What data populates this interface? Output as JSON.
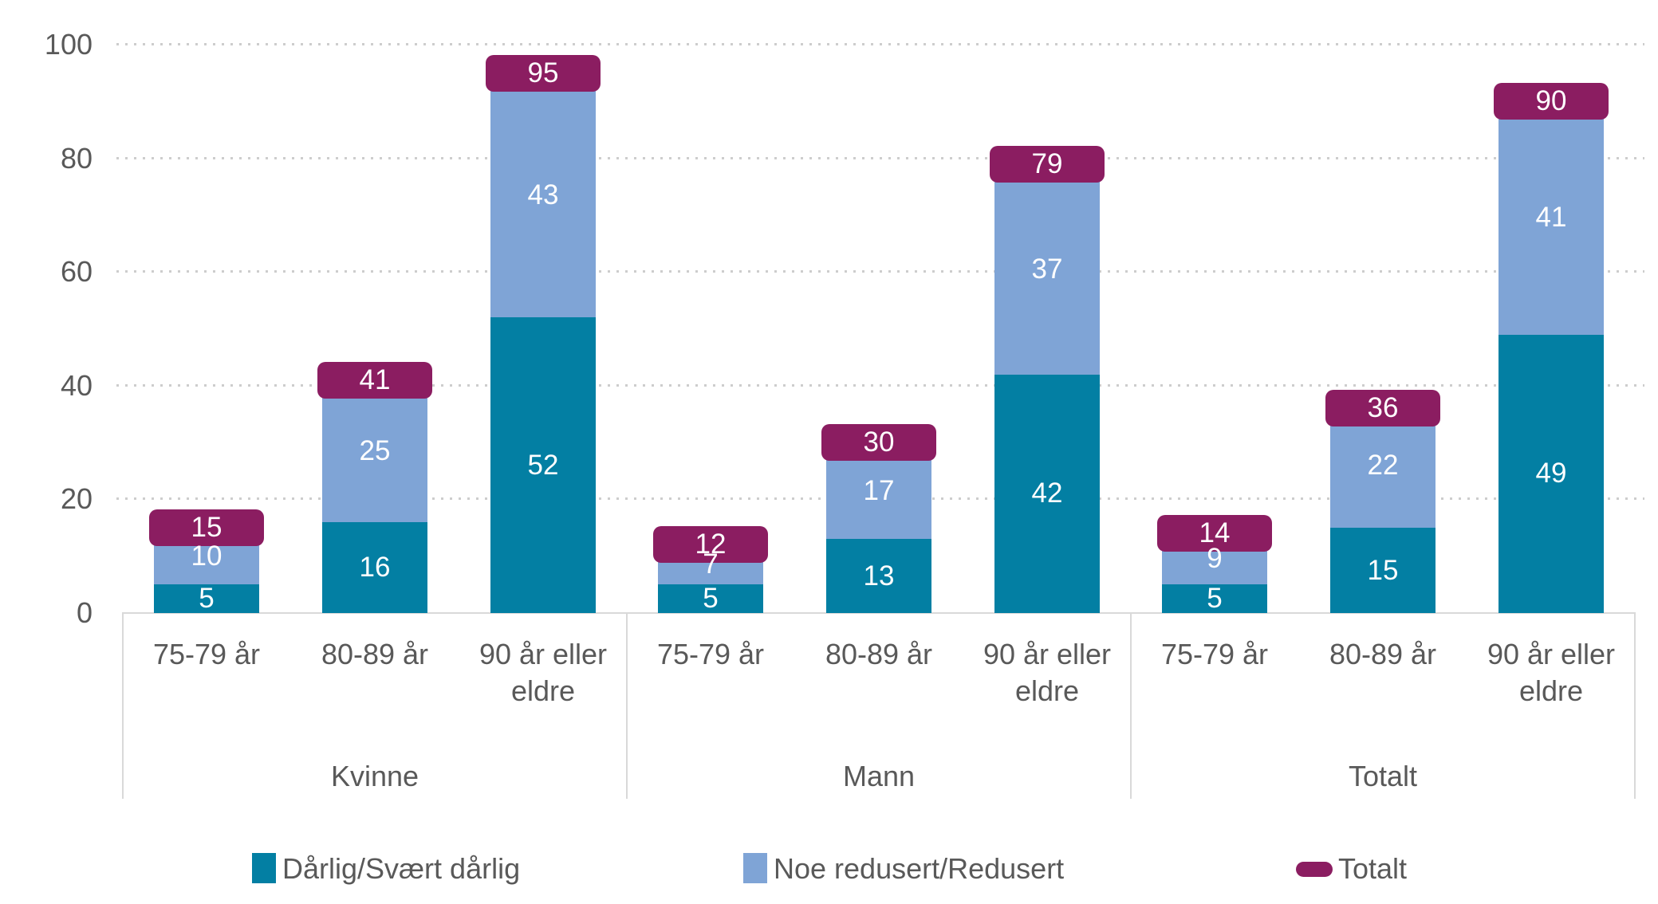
{
  "chart_data": {
    "type": "bar",
    "stacked": true,
    "title": "",
    "ylim": [
      0,
      100
    ],
    "yticks": [
      0,
      20,
      40,
      60,
      80,
      100
    ],
    "grid": "horizontal-dotted",
    "legend_position": "bottom",
    "groups": [
      {
        "label": "Kvinne",
        "categories": [
          "75-79 år",
          "80-89 år",
          "90 år eller eldre"
        ]
      },
      {
        "label": "Mann",
        "categories": [
          "75-79 år",
          "80-89 år",
          "90 år eller eldre"
        ]
      },
      {
        "label": "Totalt",
        "categories": [
          "75-79 år",
          "80-89 år",
          "90 år eller eldre"
        ]
      }
    ],
    "series": [
      {
        "name": "Dårlig/Svært dårlig",
        "color": "#037fa3",
        "marker": "square",
        "values": [
          [
            5,
            16,
            52
          ],
          [
            5,
            13,
            42
          ],
          [
            5,
            15,
            49
          ]
        ]
      },
      {
        "name": "Noe redusert/Redusert",
        "color": "#7fa4d6",
        "marker": "square",
        "values": [
          [
            10,
            25,
            43
          ],
          [
            7,
            17,
            37
          ],
          [
            9,
            22,
            41
          ]
        ]
      },
      {
        "name": "Totalt",
        "color": "#8b1d61",
        "marker": "rounded-pill-cap",
        "values": [
          [
            15,
            41,
            95
          ],
          [
            12,
            30,
            79
          ],
          [
            14,
            36,
            90
          ]
        ]
      }
    ],
    "axis_text_color": "#595959",
    "gridline_color": "#cdcdcd",
    "axis_box_color": "#d9d9d9"
  }
}
